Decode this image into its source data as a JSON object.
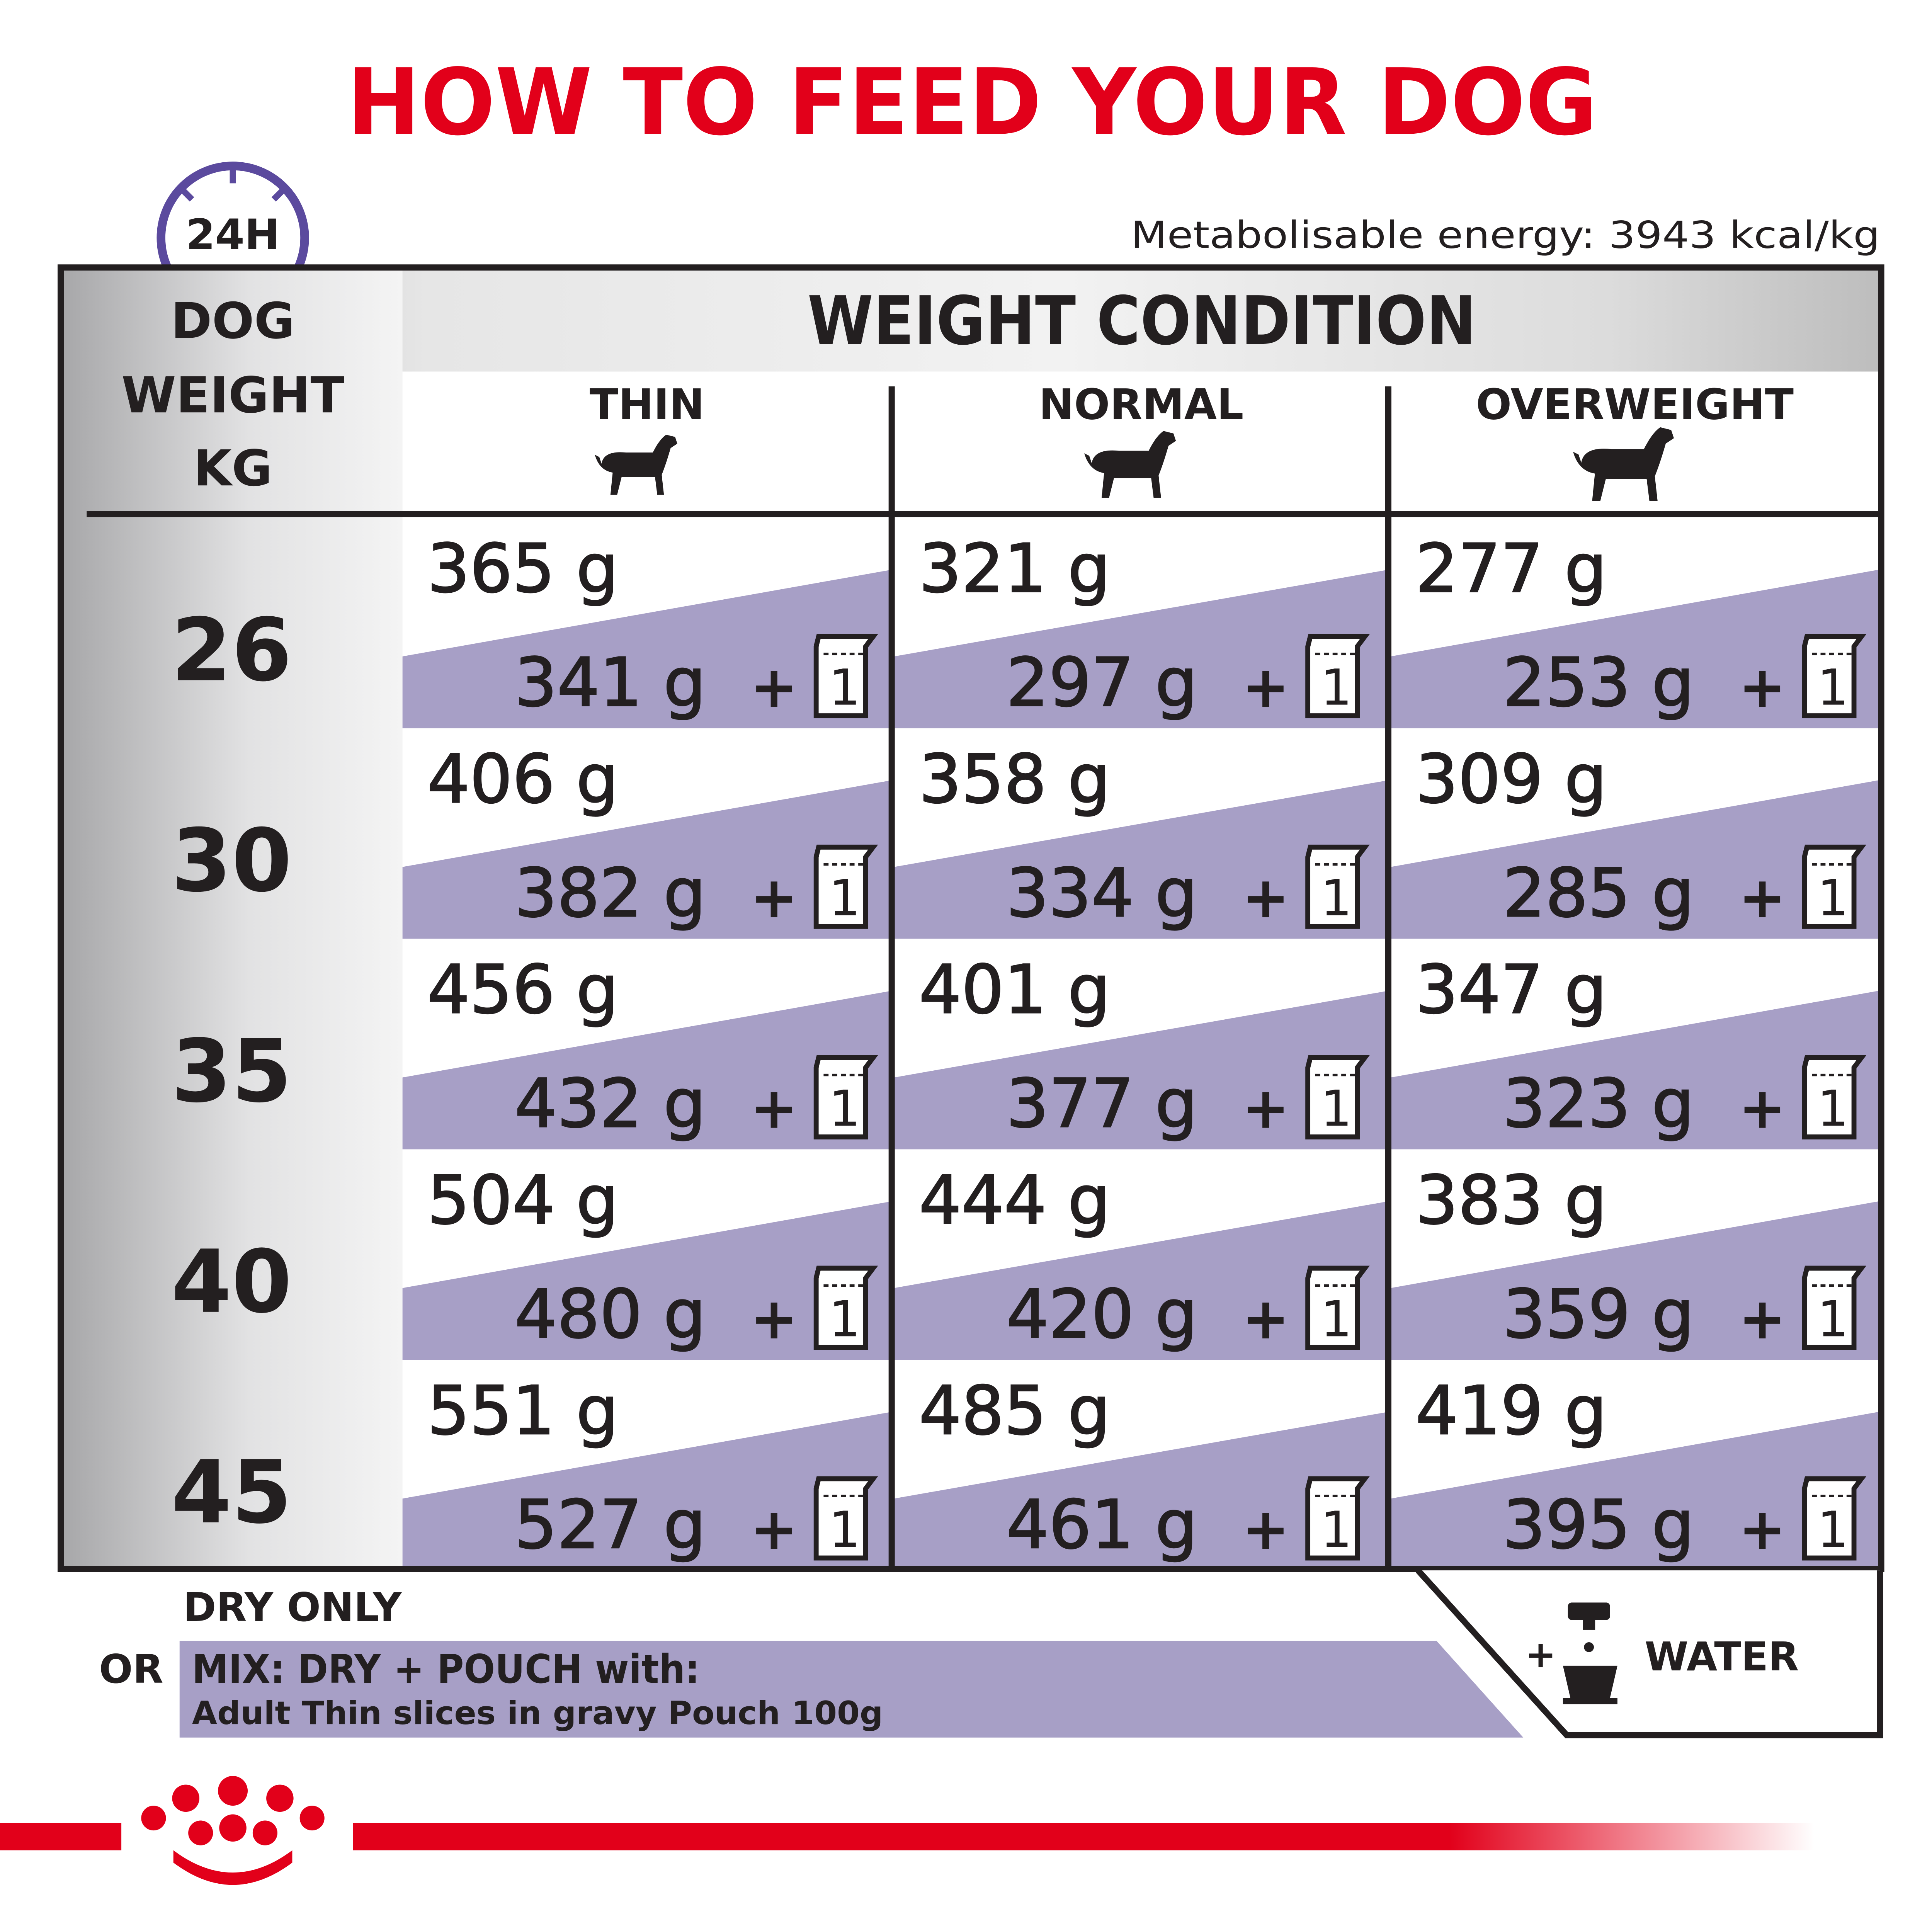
{
  "title": "HOW TO FEED YOUR DOG",
  "badge": "24H",
  "energy": "Metabolisable energy: 3943 kcal/kg",
  "table": {
    "weight_header": [
      "DOG",
      "WEIGHT",
      "KG"
    ],
    "condition_header": "WEIGHT CONDITION",
    "columns": [
      "THIN",
      "NORMAL",
      "OVERWEIGHT"
    ],
    "plus": "+",
    "pouch": "1",
    "rows": [
      {
        "weight": "26",
        "dry": [
          "365 g",
          "321 g",
          "277 g"
        ],
        "mix": [
          "341 g",
          "297 g",
          "253 g"
        ]
      },
      {
        "weight": "30",
        "dry": [
          "406 g",
          "358 g",
          "309 g"
        ],
        "mix": [
          "382 g",
          "334 g",
          "285 g"
        ]
      },
      {
        "weight": "35",
        "dry": [
          "456 g",
          "401 g",
          "347 g"
        ],
        "mix": [
          "432 g",
          "377 g",
          "323 g"
        ]
      },
      {
        "weight": "40",
        "dry": [
          "504 g",
          "444 g",
          "383 g"
        ],
        "mix": [
          "480 g",
          "420 g",
          "359 g"
        ]
      },
      {
        "weight": "45",
        "dry": [
          "551 g",
          "485 g",
          "419 g"
        ],
        "mix": [
          "527 g",
          "461 g",
          "395 g"
        ]
      }
    ]
  },
  "legend": {
    "dry": "DRY ONLY",
    "or": "OR",
    "mix": "MIX: DRY + POUCH with:",
    "pouch_name": "Adult Thin slices in gravy Pouch 100g",
    "water_plus": "+",
    "water": "WATER"
  }
}
